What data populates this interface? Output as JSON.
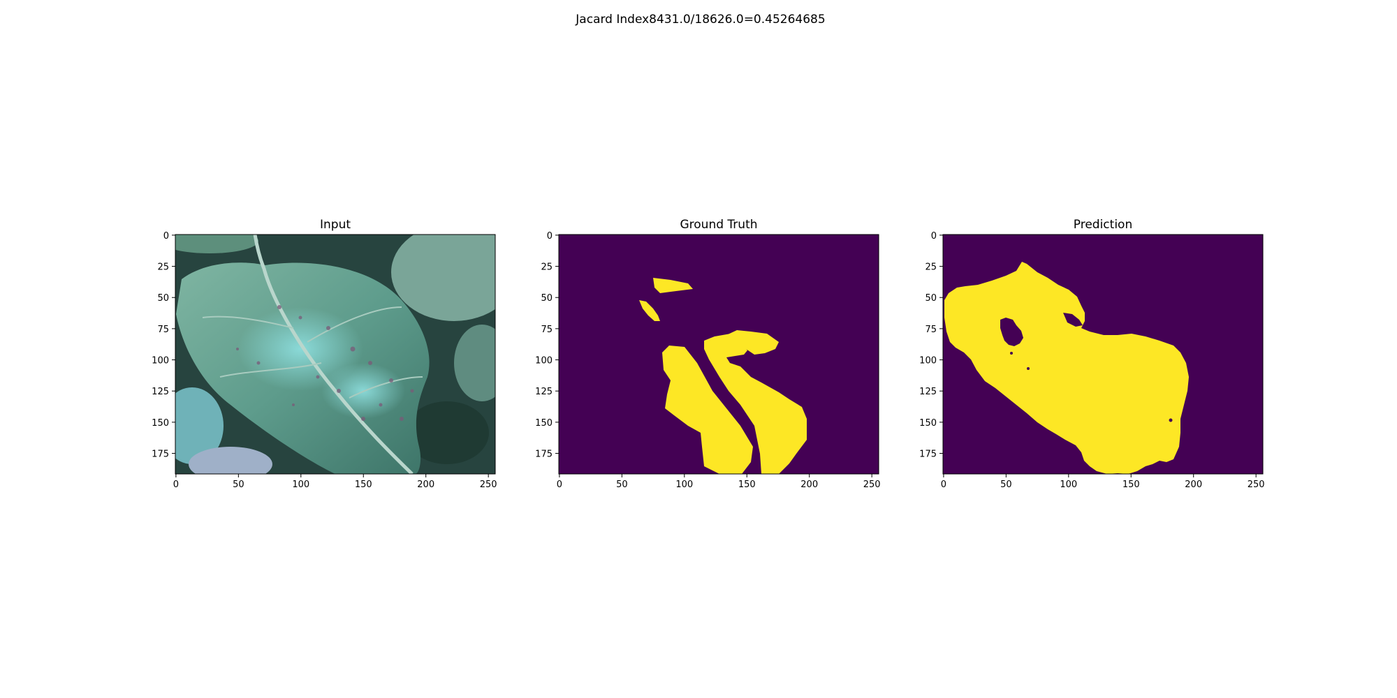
{
  "figure": {
    "suptitle": "Jacard Index8431.0/18626.0=0.45264685"
  },
  "colors": {
    "mask_background": "#440154",
    "mask_foreground": "#fde725"
  },
  "panels": [
    {
      "key": "input",
      "title": "Input",
      "image_content": "leaf",
      "x_ticks": [
        "0",
        "50",
        "100",
        "150",
        "200",
        "250"
      ],
      "y_ticks": [
        "0",
        "25",
        "50",
        "75",
        "100",
        "125",
        "150",
        "175"
      ]
    },
    {
      "key": "ground_truth",
      "title": "Ground Truth",
      "image_content": "mask",
      "x_ticks": [
        "0",
        "50",
        "100",
        "150",
        "200",
        "250"
      ],
      "y_ticks": [
        "0",
        "25",
        "50",
        "75",
        "100",
        "125",
        "150",
        "175"
      ]
    },
    {
      "key": "prediction",
      "title": "Prediction",
      "image_content": "mask",
      "x_ticks": [
        "0",
        "50",
        "100",
        "150",
        "200",
        "250"
      ],
      "y_ticks": [
        "0",
        "25",
        "50",
        "75",
        "100",
        "125",
        "150",
        "175"
      ]
    }
  ]
}
